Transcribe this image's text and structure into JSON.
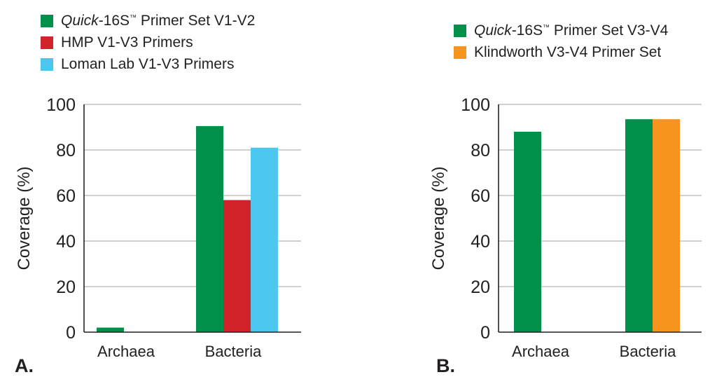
{
  "chart_data": [
    {
      "panel_label": "A.",
      "type": "bar",
      "categories": [
        "Archaea",
        "Bacteria"
      ],
      "ylabel": "Coverage (%)",
      "ylim": [
        0,
        100
      ],
      "yticks": [
        0,
        20,
        40,
        60,
        80,
        100
      ],
      "grid": true,
      "legend_position": "top-left",
      "series": [
        {
          "name_italic": "Quick",
          "name": "-16S",
          "name_mark": "™",
          "name_suffix": " Primer Set V1-V2",
          "color": "#00904a",
          "values": [
            2,
            90.5
          ]
        },
        {
          "name": "HMP V1-V3 Primers",
          "color": "#d2232a",
          "values": [
            0,
            58
          ]
        },
        {
          "name": "Loman Lab V1-V3 Primers",
          "color": "#4cc8f0",
          "values": [
            0,
            81
          ]
        }
      ]
    },
    {
      "panel_label": "B.",
      "type": "bar",
      "categories": [
        "Archaea",
        "Bacteria"
      ],
      "ylabel": "Coverage (%)",
      "ylim": [
        0,
        100
      ],
      "yticks": [
        0,
        20,
        40,
        60,
        80,
        100
      ],
      "grid": true,
      "legend_position": "top-left",
      "series": [
        {
          "name_italic": "Quick",
          "name": "-16S",
          "name_mark": "™",
          "name_suffix": " Primer Set V3-V4",
          "color": "#00904a",
          "values": [
            88,
            93.5
          ]
        },
        {
          "name": "Klindworth V3-V4 Primer Set",
          "color": "#f7941d",
          "values": [
            0,
            93.5
          ]
        }
      ]
    }
  ]
}
